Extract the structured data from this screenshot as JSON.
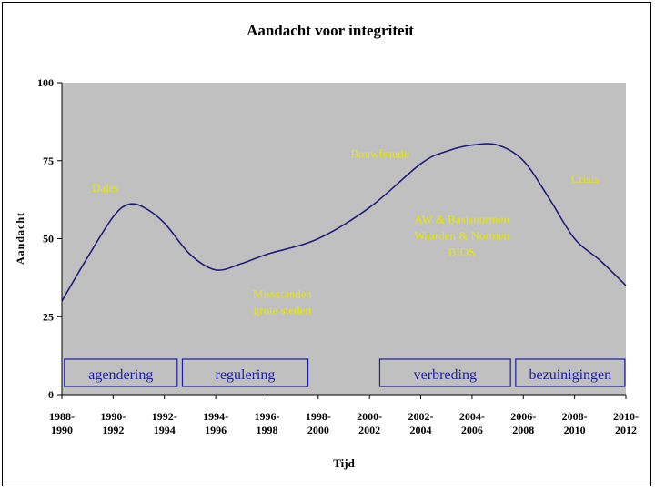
{
  "chart_data": {
    "type": "line",
    "title": "Aandacht voor integriteit",
    "xlabel": "Tijd",
    "ylabel": "Aandacht",
    "ylim": [
      0,
      100
    ],
    "yticks": [
      0,
      25,
      50,
      75,
      100
    ],
    "categories": [
      [
        "1988-",
        "1990"
      ],
      [
        "1990-",
        "1992"
      ],
      [
        "1992-",
        "1994"
      ],
      [
        "1994-",
        "1996"
      ],
      [
        "1996-",
        "1998"
      ],
      [
        "1998-",
        "2000"
      ],
      [
        "2000-",
        "2002"
      ],
      [
        "2002-",
        "2004"
      ],
      [
        "2004-",
        "2006"
      ],
      [
        "2006-",
        "2008"
      ],
      [
        "2008-",
        "2010"
      ],
      [
        "2010-",
        "2012"
      ]
    ],
    "series": [
      {
        "values": [
          {
            "x": 0,
            "y": 30
          },
          {
            "x": 0.5,
            "y": 44
          },
          {
            "x": 1,
            "y": 57
          },
          {
            "x": 1.3,
            "y": 61
          },
          {
            "x": 1.6,
            "y": 60
          },
          {
            "x": 2,
            "y": 55
          },
          {
            "x": 2.5,
            "y": 45
          },
          {
            "x": 3,
            "y": 40
          },
          {
            "x": 3.5,
            "y": 42
          },
          {
            "x": 4,
            "y": 45
          },
          {
            "x": 5,
            "y": 50
          },
          {
            "x": 6,
            "y": 60
          },
          {
            "x": 7,
            "y": 74
          },
          {
            "x": 7.5,
            "y": 78
          },
          {
            "x": 8,
            "y": 80
          },
          {
            "x": 8.5,
            "y": 80
          },
          {
            "x": 9,
            "y": 75
          },
          {
            "x": 9.5,
            "y": 63
          },
          {
            "x": 10,
            "y": 50
          },
          {
            "x": 10.5,
            "y": 43
          },
          {
            "x": 11,
            "y": 35
          }
        ],
        "color": "#1f1f7a"
      }
    ],
    "annotations": [
      {
        "text": [
          "Dales"
        ],
        "x": 0.85,
        "y": 65
      },
      {
        "text": [
          "Missstanden",
          "grote steden"
        ],
        "x": 4.3,
        "y": 31
      },
      {
        "text": [
          "Bouwfraude"
        ],
        "x": 6.2,
        "y": 76
      },
      {
        "text": [
          "AW & Basisnormen",
          "Waarden & Normen",
          "BIOS"
        ],
        "x": 7.8,
        "y": 55
      },
      {
        "text": [
          "Crisis"
        ],
        "x": 10.2,
        "y": 68
      }
    ],
    "phases": [
      {
        "label": "agendering",
        "from": 0.05,
        "to": 2.25
      },
      {
        "label": "regulering",
        "from": 2.35,
        "to": 4.8
      },
      {
        "label": "verbreding",
        "from": 6.2,
        "to": 8.75
      },
      {
        "label": "bezuinigingen",
        "from": 8.85,
        "to": 10.98
      }
    ],
    "colors": {
      "plot_bg": "#c0c0c0",
      "line": "#1f1f7a",
      "annotation": "#e8e800",
      "phase_border": "#1c1ca0",
      "phase_text": "#1c1ca0"
    },
    "grid": false,
    "legend": "none"
  }
}
